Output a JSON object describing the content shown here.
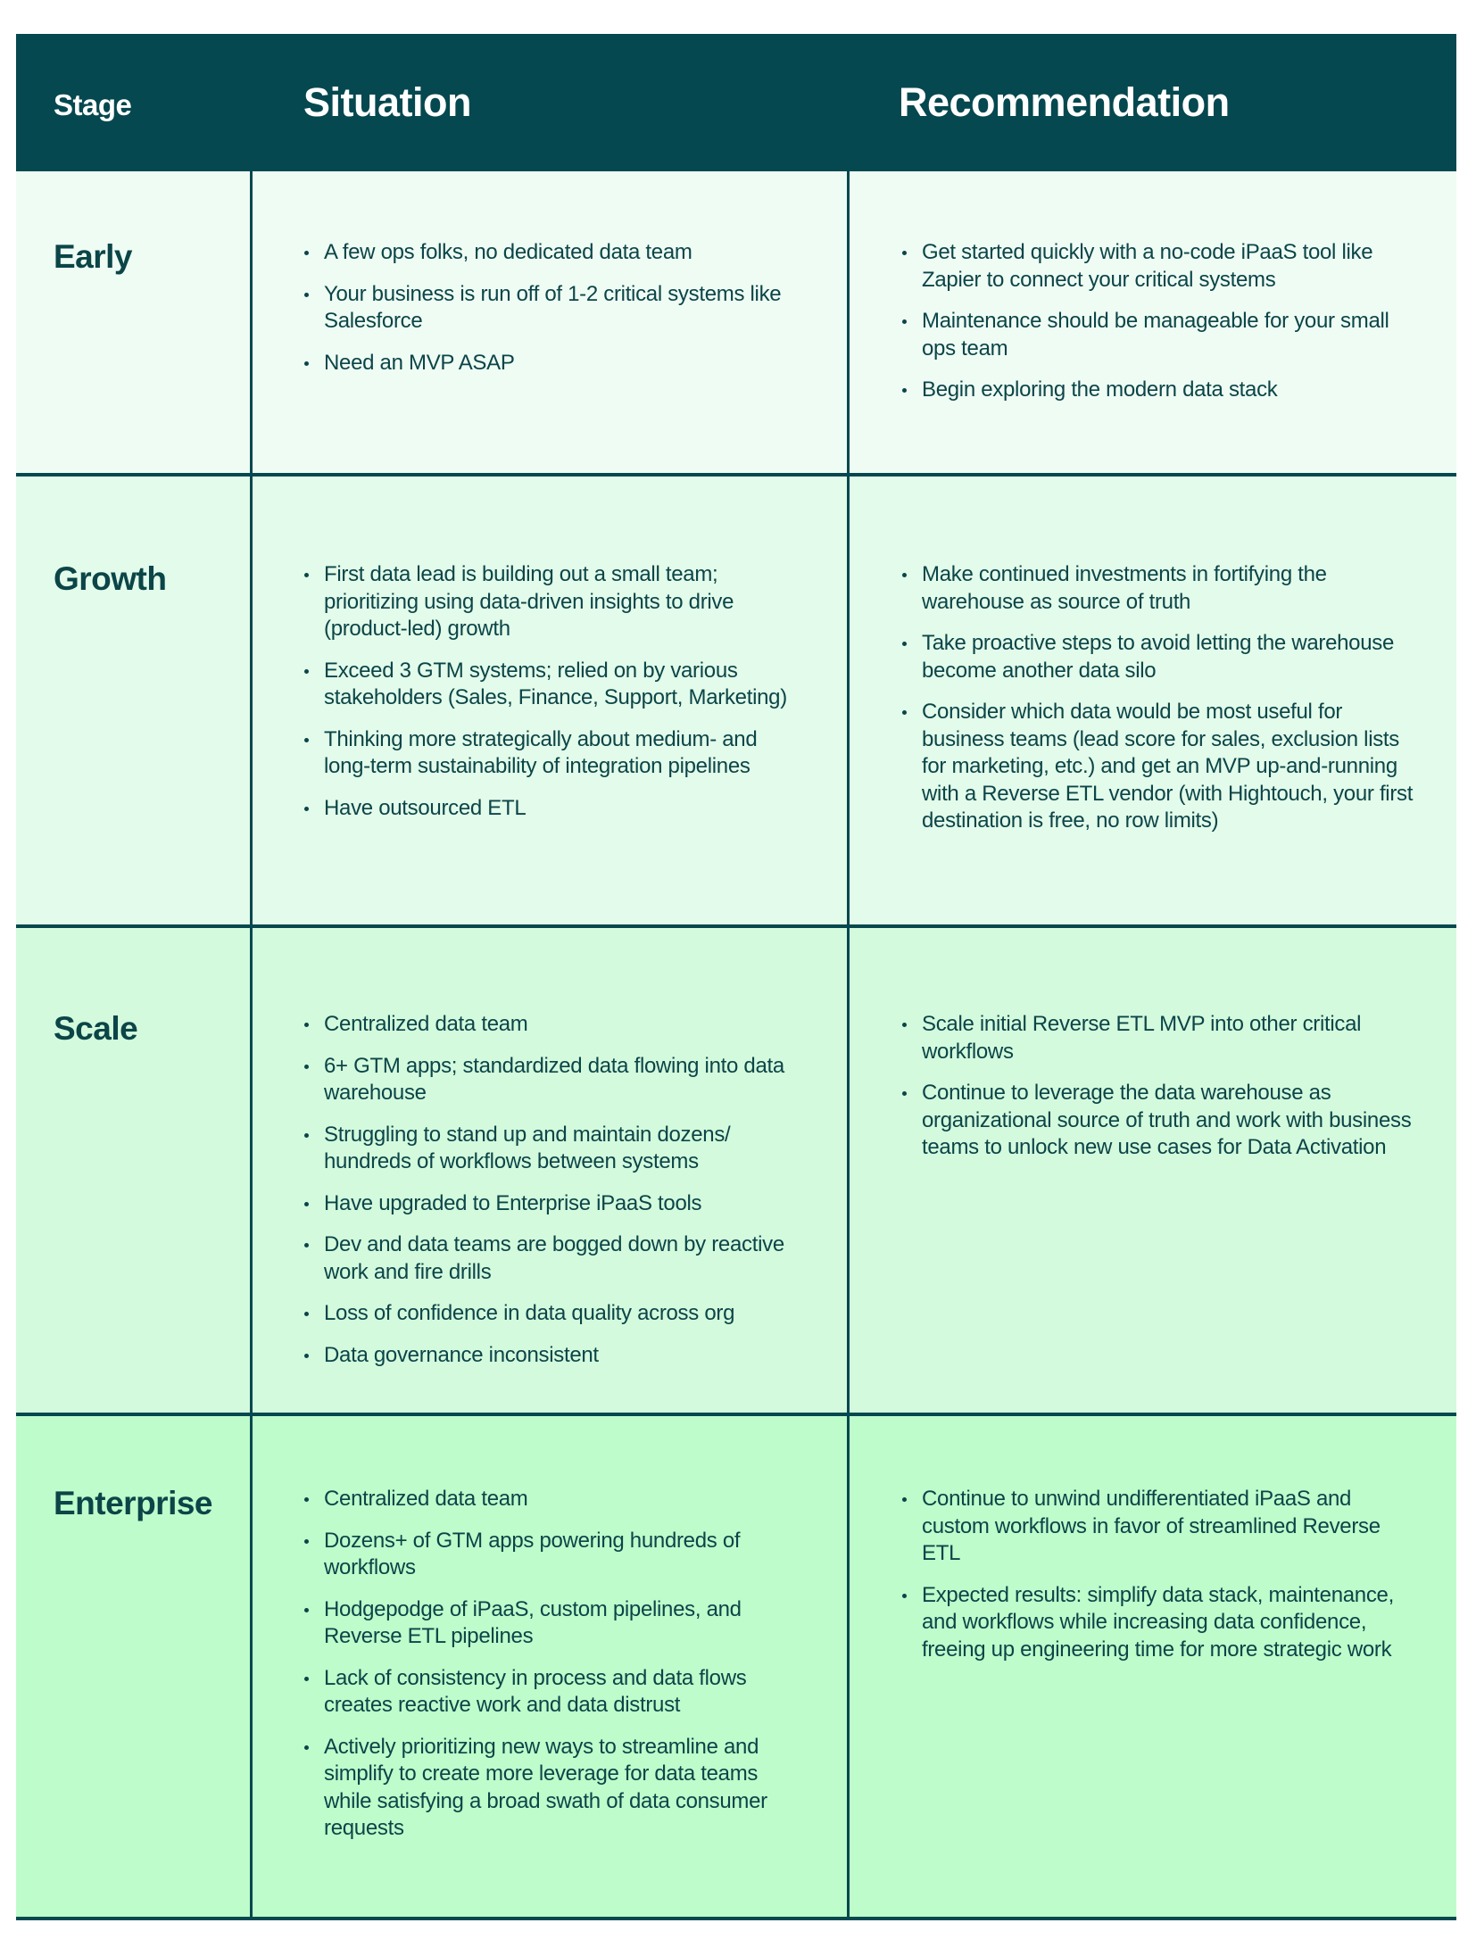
{
  "header": {
    "stage": "Stage",
    "situation": "Situation",
    "recommendation": "Recommendation"
  },
  "colors": {
    "header_bg": "#05484f",
    "text": "#0b4548",
    "row_early": "#effcf3",
    "row_growth": "#e3fbea",
    "row_scale": "#d4fadd",
    "row_enterprise": "#bffccb"
  },
  "rows": [
    {
      "stage": "Early",
      "situation": [
        "A few ops folks, no dedicated data team",
        "Your business is run off of 1-2 critical systems like Salesforce",
        "Need an MVP ASAP"
      ],
      "recommendation": [
        "Get started quickly with a no-code iPaaS tool like Zapier to connect your critical systems",
        "Maintenance should be manageable for your small ops team",
        "Begin exploring the modern data stack"
      ]
    },
    {
      "stage": "Growth",
      "situation": [
        "First data lead is building out a small team; prioritizing using data-driven insights to drive (product-led) growth",
        "Exceed 3 GTM systems; relied on by various stakeholders (Sales, Finance, Support, Marketing)",
        "Thinking more strategically about medium- and long-term sustainability of  integration pipelines",
        "Have outsourced ETL"
      ],
      "recommendation": [
        "Make continued investments in fortifying the warehouse as source of truth",
        "Take proactive steps to avoid letting the warehouse become another data silo",
        "Consider which data would be most useful for business teams (lead score for sales, exclusion lists for marketing, etc.) and get an MVP up-and-running with a Reverse ETL vendor (with Hightouch, your first destination is free, no row limits)"
      ]
    },
    {
      "stage": "Scale",
      "situation": [
        "Centralized data team",
        "6+ GTM apps; standardized data flowing into data warehouse",
        "Struggling to stand up and maintain dozens/ hundreds of workflows between systems",
        "Have upgraded to Enterprise iPaaS tools",
        "Dev and data teams are bogged down by reactive work and fire drills",
        "Loss of confidence in data quality across org",
        "Data governance inconsistent"
      ],
      "recommendation": [
        "Scale initial Reverse ETL MVP into other critical workflows",
        "Continue to leverage the data warehouse as organizational source of truth and work with business teams to unlock new use cases for Data Activation"
      ]
    },
    {
      "stage": "Enterprise",
      "situation": [
        "Centralized data team",
        "Dozens+ of GTM apps powering hundreds of workflows",
        "Hodgepodge of iPaaS, custom pipelines, and Reverse ETL pipelines",
        "Lack of consistency in process and data flows creates reactive work and data distrust",
        "Actively prioritizing new ways to streamline and simplify to create more leverage for data teams while satisfying a broad swath of data consumer requests"
      ],
      "recommendation": [
        "Continue to unwind undifferentiated iPaaS and custom workflows in favor of streamlined Reverse ETL",
        "Expected results: simplify data stack, maintenance, and workflows while increasing data confidence, freeing up engineering time for more strategic work"
      ]
    }
  ]
}
